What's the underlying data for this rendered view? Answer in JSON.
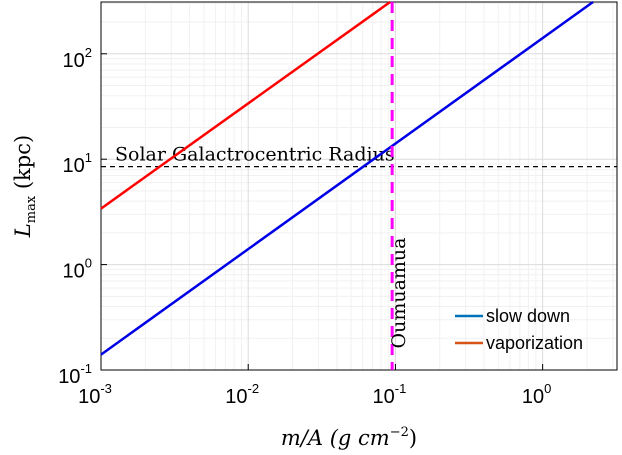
{
  "chart_data": {
    "type": "line",
    "xscale": "log",
    "yscale": "log",
    "xlim": [
      0.001,
      3.2
    ],
    "ylim": [
      0.1,
      310
    ],
    "grid": true,
    "xlabel": {
      "pre": "m/A (g cm",
      "sup": "−2",
      "post": ")"
    },
    "ylabel": {
      "main": "L",
      "sub": "max",
      "post": " (kpc)"
    },
    "x_ticks": [
      {
        "value": 0.001,
        "base": "10",
        "exp": "-3"
      },
      {
        "value": 0.01,
        "base": "10",
        "exp": "-2"
      },
      {
        "value": 0.1,
        "base": "10",
        "exp": "-1"
      },
      {
        "value": 1,
        "base": "10",
        "exp": "0"
      }
    ],
    "y_ticks": [
      {
        "value": 0.1,
        "base": "10",
        "exp": "-1"
      },
      {
        "value": 1,
        "base": "10",
        "exp": "0"
      },
      {
        "value": 10,
        "base": "10",
        "exp": "1"
      },
      {
        "value": 100,
        "base": "10",
        "exp": "2"
      }
    ],
    "series": [
      {
        "name": "slow down",
        "color": "#0000e6",
        "legend_color": "#0072bd",
        "x": [
          0.001,
          2.2
        ],
        "y": [
          0.14,
          310
        ]
      },
      {
        "name": "vaporization",
        "color": "#ff0000",
        "legend_color": "#d95319",
        "x": [
          0.001,
          0.092
        ],
        "y": [
          3.4,
          310
        ]
      }
    ],
    "annotations": {
      "solar_radius": {
        "label": "Solar Galactrocentric Radius",
        "y": 8.5,
        "color": "#000000",
        "style": "dashed"
      },
      "oumuamua": {
        "label": "Oumuamua",
        "x": 0.095,
        "color": "#ff00ff",
        "style": "dashed"
      }
    },
    "legend_position": "bottom-right"
  }
}
